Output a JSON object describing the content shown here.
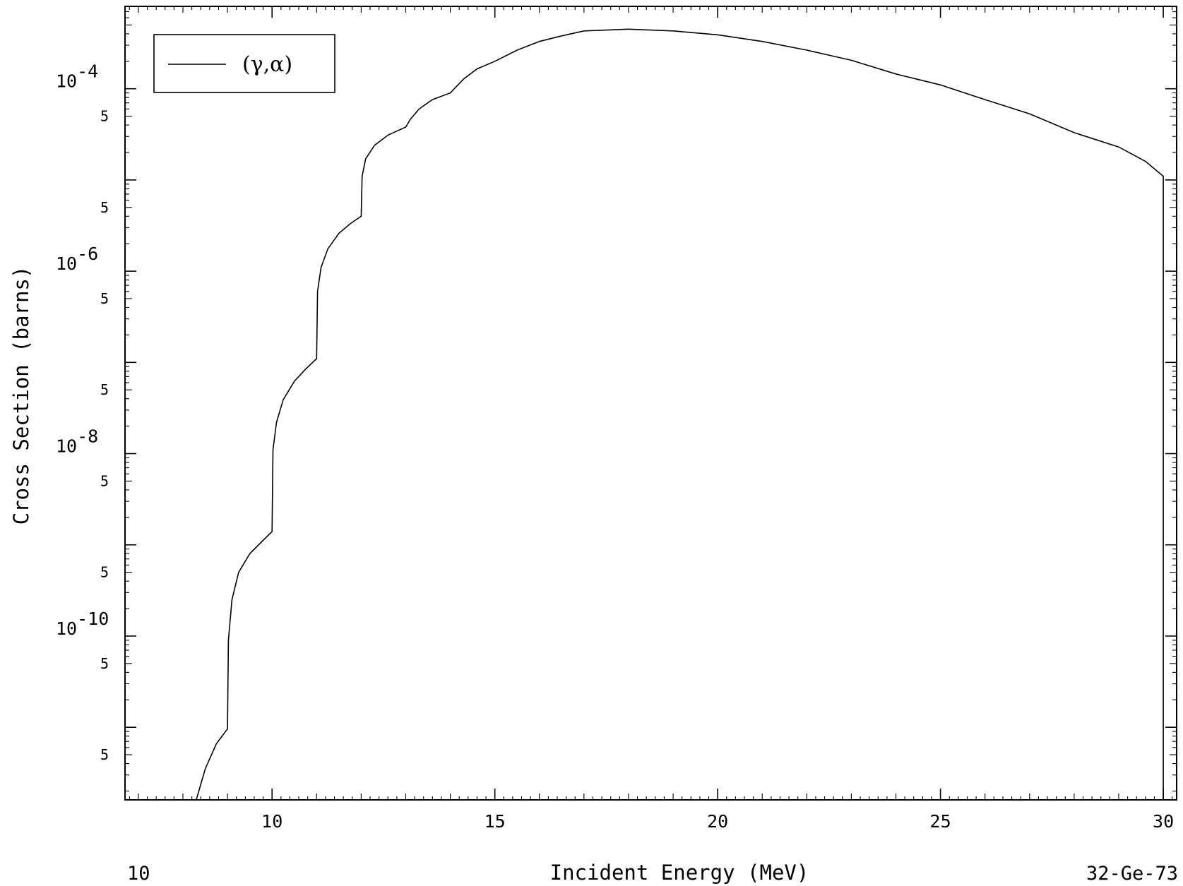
{
  "chart_data": {
    "type": "line",
    "title": "",
    "xlabel": "Incident Energy (MeV)",
    "ylabel": "Cross Section (barns)",
    "x_scale": "linear",
    "y_scale": "log",
    "xlim": [
      6.7,
      30.3
    ],
    "ylim": [
      1.6e-12,
      0.0008
    ],
    "grid": false,
    "legend_position": "top-left",
    "x_ticks": [
      10,
      15,
      20,
      25,
      30
    ],
    "x_tick_labels": [
      "10",
      "15",
      "20",
      "25",
      "30"
    ],
    "y_major_ticks": [
      {
        "value": 0.0001,
        "base": "10",
        "exponent": "-4"
      },
      {
        "value": 1e-06,
        "base": "10",
        "exponent": "-6"
      },
      {
        "value": 1e-08,
        "base": "10",
        "exponent": "-8"
      },
      {
        "value": 1e-10,
        "base": "10",
        "exponent": "-10"
      }
    ],
    "y_minor_label_values": [
      5e-05,
      5e-06,
      5e-07,
      5e-08,
      5e-09,
      5e-10,
      5e-11,
      5e-12
    ],
    "y_minor_label_text": "5",
    "series": [
      {
        "name": "(γ,α)",
        "x": [
          8.3,
          8.5,
          8.75,
          9.0,
          9.02,
          9.1,
          9.25,
          9.5,
          9.75,
          10.0,
          10.02,
          10.1,
          10.25,
          10.5,
          10.75,
          11.0,
          11.02,
          11.1,
          11.25,
          11.5,
          11.75,
          12.0,
          12.02,
          12.1,
          12.3,
          12.6,
          13.0,
          13.1,
          13.3,
          13.6,
          14.0,
          14.3,
          14.6,
          15.0,
          15.5,
          16.0,
          16.5,
          17.0,
          18.0,
          19.0,
          20.0,
          21.0,
          22.0,
          23.0,
          24.0,
          25.0,
          26.0,
          27.0,
          28.0,
          29.0,
          29.6,
          30.0,
          30.0
        ],
        "y": [
          1.6e-12,
          3.5e-12,
          6.6e-12,
          9.6e-12,
          9e-11,
          2.5e-10,
          5e-10,
          8e-10,
          1.06e-09,
          1.4e-09,
          1.1e-08,
          2.2e-08,
          3.9e-08,
          6.2e-08,
          8.4e-08,
          1.1e-07,
          6e-07,
          1.1e-06,
          1.75e-06,
          2.6e-06,
          3.3e-06,
          4e-06,
          1.1e-05,
          1.7e-05,
          2.4e-05,
          3.1e-05,
          3.8e-05,
          4.6e-05,
          6e-05,
          7.6e-05,
          9e-05,
          0.000128,
          0.000165,
          0.0002,
          0.000265,
          0.00033,
          0.00038,
          0.00043,
          0.00045,
          0.00043,
          0.00039,
          0.00033,
          0.000265,
          0.000205,
          0.000145,
          0.00011,
          7.6e-05,
          5.3e-05,
          3.3e-05,
          2.3e-05,
          1.6e-05,
          1.1e-05,
          1.6e-12
        ]
      }
    ]
  },
  "legend": {
    "label": "(γ,α)"
  },
  "footer": {
    "left": "10",
    "center": "Incident Energy (MeV)",
    "right": "32-Ge-73"
  }
}
